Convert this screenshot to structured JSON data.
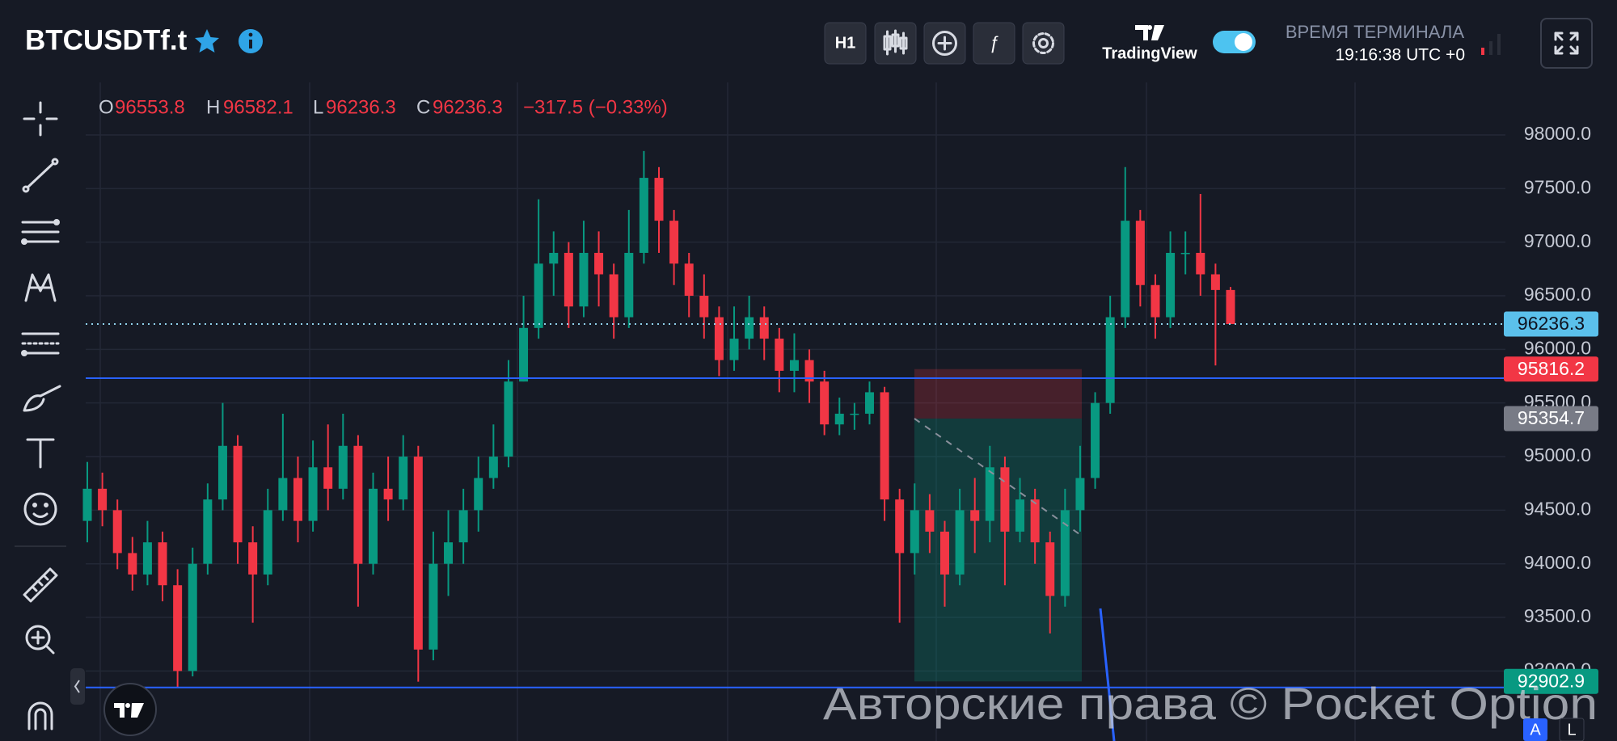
{
  "header": {
    "symbol": "BTCUSDTf.t"
  },
  "toolbar": {
    "interval": "H1"
  },
  "brand": "TradingView",
  "terminal": {
    "label": "ВРЕМЯ ТЕРМИНАЛА",
    "time": "19:16:38 UTC +0"
  },
  "legend": {
    "o": "O",
    "h": "H",
    "l": "L",
    "c": "C",
    "change": "−317.5 (−0.33%)"
  },
  "chart_data": {
    "type": "candlestick",
    "open": [
      94400,
      94700,
      94500,
      94100,
      93900,
      94200,
      93800,
      93000,
      94000,
      94600,
      95100,
      94200,
      93900,
      94500,
      94800,
      94400,
      94900,
      94700,
      95100,
      94000,
      94700,
      94600,
      95000,
      93200,
      94000,
      94200,
      94500,
      94800,
      95000,
      95700,
      96200,
      96800,
      96900,
      96400,
      96900,
      96700,
      96300,
      96900,
      97600,
      97200,
      96800,
      96500,
      96300,
      95900,
      96100,
      96300,
      96100,
      95800,
      95900,
      95700,
      95300,
      95400,
      95400,
      95600,
      94600,
      94100,
      94500,
      94300,
      93900,
      94500,
      94400,
      94900,
      94300,
      94600,
      94200,
      93700,
      94500,
      94800,
      95500,
      96300,
      97200,
      96600,
      96300,
      96900,
      96900,
      96700,
      96553.8
    ],
    "high": [
      94950,
      94850,
      94600,
      94250,
      94400,
      94300,
      93950,
      94150,
      94750,
      95500,
      95200,
      94350,
      94700,
      95400,
      95000,
      95150,
      95300,
      95400,
      95200,
      94850,
      95000,
      95200,
      95100,
      94300,
      94500,
      94700,
      95000,
      95300,
      95900,
      96500,
      97400,
      97100,
      97000,
      97200,
      97100,
      96800,
      97300,
      97850,
      97700,
      97300,
      96900,
      96700,
      96400,
      96400,
      96500,
      96400,
      96200,
      96150,
      96000,
      95800,
      95550,
      95500,
      95700,
      95650,
      94700,
      94750,
      94650,
      94400,
      94700,
      94800,
      95100,
      95000,
      94800,
      94700,
      94300,
      94700,
      95100,
      95600,
      96500,
      97700,
      97300,
      96700,
      97100,
      97100,
      97450,
      96800,
      96582.1
    ],
    "low": [
      94200,
      94350,
      93950,
      93750,
      93800,
      93650,
      92850,
      92950,
      93900,
      94500,
      94000,
      93450,
      93800,
      94400,
      94200,
      94300,
      94500,
      94600,
      93600,
      93900,
      94400,
      94500,
      92900,
      93100,
      93700,
      94000,
      94300,
      94700,
      94900,
      95700,
      96100,
      96500,
      96200,
      96300,
      96400,
      96100,
      96200,
      96800,
      96900,
      96600,
      96300,
      96100,
      95750,
      95800,
      96000,
      95900,
      95600,
      95600,
      95500,
      95200,
      95200,
      95250,
      95300,
      94400,
      93450,
      93900,
      94100,
      93600,
      93800,
      94100,
      94200,
      93800,
      94200,
      94000,
      93350,
      93600,
      94300,
      94700,
      95400,
      96200,
      96400,
      96100,
      96200,
      96700,
      96500,
      95850,
      96236.3
    ],
    "close": [
      94700,
      94500,
      94100,
      93900,
      94200,
      93800,
      93000,
      94000,
      94600,
      95100,
      94200,
      93900,
      94500,
      94800,
      94400,
      94900,
      94700,
      95100,
      94000,
      94700,
      94600,
      95000,
      93200,
      94000,
      94200,
      94500,
      94800,
      95000,
      95700,
      96200,
      96800,
      96900,
      96400,
      96900,
      96700,
      96300,
      96900,
      97600,
      97200,
      96800,
      96500,
      96300,
      95900,
      96100,
      96300,
      96100,
      95800,
      95900,
      95700,
      95300,
      95400,
      95400,
      95600,
      94600,
      94100,
      94500,
      94300,
      93900,
      94500,
      94400,
      94900,
      94300,
      94600,
      94200,
      93700,
      94500,
      94800,
      95500,
      96300,
      97200,
      96600,
      96300,
      96900,
      96900,
      96700,
      96553.8,
      96236.3
    ],
    "up_color": "#089981",
    "down_color": "#f23645",
    "ylim": [
      92347,
      98490
    ],
    "yticks": [
      {
        "value": 93000,
        "label": "93000.0"
      },
      {
        "value": 93500,
        "label": "93500.0"
      },
      {
        "value": 94000,
        "label": "94000.0"
      },
      {
        "value": 94500,
        "label": "94500.0"
      },
      {
        "value": 95000,
        "label": "95000.0"
      },
      {
        "value": 95500,
        "label": "95500.0"
      },
      {
        "value": 96000,
        "label": "96000.0"
      },
      {
        "value": 96500,
        "label": "96500.0"
      },
      {
        "value": 97000,
        "label": "97000.0"
      },
      {
        "value": 97500,
        "label": "97500.0"
      },
      {
        "value": 98000,
        "label": "98000.0"
      }
    ],
    "grid": true,
    "last_price_color": "#5bc0eb",
    "price_labels": [
      95816.2,
      95354.7,
      92902.9
    ],
    "price_label_colors": [
      "#f23645",
      "#787b86",
      "#089981"
    ],
    "hlines": [
      95731,
      92846
    ],
    "hline_color": "#2962ff"
  },
  "watermark": "Авторские права © Pocket Option",
  "scale_buttons": [
    "A",
    "L"
  ]
}
